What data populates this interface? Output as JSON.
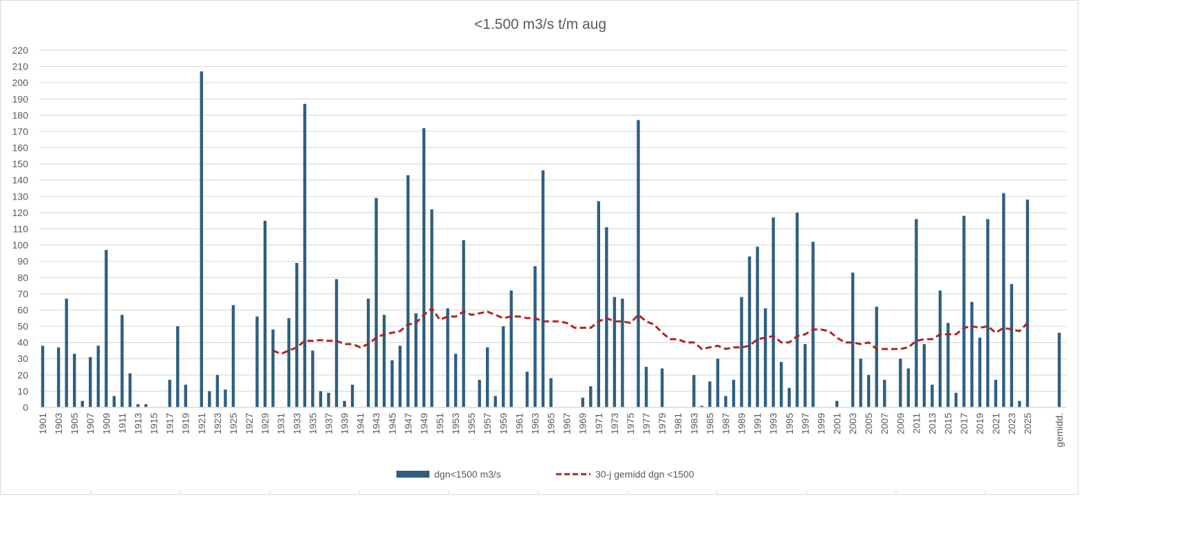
{
  "chart_data": {
    "type": "bar",
    "title": "<1.500 m3/s t/m aug",
    "xlabel": "",
    "ylabel": "",
    "ylim": [
      0,
      220
    ],
    "yticks": [
      0,
      10,
      20,
      30,
      40,
      50,
      60,
      70,
      80,
      90,
      100,
      110,
      120,
      130,
      140,
      150,
      160,
      170,
      180,
      190,
      200,
      210,
      220
    ],
    "grid": true,
    "legend_position": "bottom",
    "colors": {
      "bars": "#2e5f80",
      "line": "#b22222",
      "grid": "#d9d9d9",
      "text": "#595959"
    },
    "categories": [
      "1901",
      "1902",
      "1903",
      "1904",
      "1905",
      "1906",
      "1907",
      "1908",
      "1909",
      "1910",
      "1911",
      "1912",
      "1913",
      "1914",
      "1915",
      "1916",
      "1917",
      "1918",
      "1919",
      "1920",
      "1921",
      "1922",
      "1923",
      "1924",
      "1925",
      "1926",
      "1927",
      "1928",
      "1929",
      "1930",
      "1931",
      "1932",
      "1933",
      "1934",
      "1935",
      "1936",
      "1937",
      "1938",
      "1939",
      "1940",
      "1941",
      "1942",
      "1943",
      "1944",
      "1945",
      "1946",
      "1947",
      "1948",
      "1949",
      "1950",
      "1951",
      "1952",
      "1953",
      "1954",
      "1955",
      "1956",
      "1957",
      "1958",
      "1959",
      "1960",
      "1961",
      "1962",
      "1963",
      "1964",
      "1965",
      "1966",
      "1967",
      "1968",
      "1969",
      "1970",
      "1971",
      "1972",
      "1973",
      "1974",
      "1975",
      "1976",
      "1977",
      "1978",
      "1979",
      "1980",
      "1981",
      "1982",
      "1983",
      "1984",
      "1985",
      "1986",
      "1987",
      "1988",
      "1989",
      "1990",
      "1991",
      "1992",
      "1993",
      "1994",
      "1995",
      "1996",
      "1997",
      "1998",
      "1999",
      "2000",
      "2001",
      "2002",
      "2003",
      "2004",
      "2005",
      "2006",
      "2007",
      "2008",
      "2009",
      "2010",
      "2011",
      "2012",
      "2013",
      "2014",
      "2015",
      "2016",
      "2017",
      "2018",
      "2019",
      "2020",
      "2021",
      "2022",
      "2023",
      "2024",
      "2025",
      "gemidd."
    ],
    "series": [
      {
        "name": "dgn<1500 m3/s",
        "type": "bar",
        "values": [
          38,
          0,
          37,
          67,
          33,
          4,
          31,
          38,
          97,
          7,
          57,
          21,
          2,
          2,
          0,
          0,
          17,
          50,
          14,
          0,
          207,
          10,
          20,
          11,
          63,
          0,
          0,
          56,
          115,
          48,
          0,
          55,
          89,
          187,
          35,
          10,
          9,
          79,
          4,
          14,
          0,
          67,
          129,
          57,
          29,
          38,
          143,
          58,
          172,
          122,
          0,
          61,
          33,
          103,
          0,
          17,
          37,
          7,
          50,
          72,
          0,
          22,
          87,
          146,
          18,
          0,
          0,
          0,
          6,
          13,
          127,
          111,
          68,
          67,
          0,
          177,
          25,
          0,
          24,
          0,
          0,
          0,
          20,
          1,
          16,
          30,
          7,
          17,
          68,
          93,
          99,
          61,
          117,
          28,
          12,
          120,
          39,
          102,
          0,
          0,
          4,
          0,
          83,
          30,
          20,
          62,
          17,
          0,
          30,
          24,
          116,
          39,
          14,
          72,
          52,
          9,
          118,
          65,
          43,
          116,
          17,
          132,
          76,
          4,
          128,
          46
        ]
      },
      {
        "name": "30-j gemidd dgn <1500",
        "type": "line",
        "style": "dashed",
        "values": [
          null,
          null,
          null,
          null,
          null,
          null,
          null,
          null,
          null,
          null,
          null,
          null,
          null,
          null,
          null,
          null,
          null,
          null,
          null,
          null,
          null,
          null,
          null,
          null,
          null,
          null,
          null,
          null,
          null,
          35,
          33,
          35,
          37,
          41,
          41,
          41.5,
          41,
          41,
          39,
          39,
          37,
          39,
          43,
          45,
          46,
          47,
          51,
          52,
          57,
          61,
          54,
          56,
          56,
          59,
          57,
          58,
          59,
          57,
          55,
          56,
          56,
          55,
          55,
          53,
          53,
          53,
          52,
          49,
          49,
          49,
          53,
          55,
          53,
          53,
          52,
          57,
          53,
          51,
          46,
          42,
          42,
          40,
          40,
          36,
          37,
          38,
          36,
          37,
          37,
          38,
          42,
          43,
          44,
          40,
          40,
          44,
          45,
          48,
          48,
          47,
          43,
          40,
          40,
          39,
          40,
          36,
          36,
          36,
          36,
          37,
          41,
          42,
          42,
          45,
          45,
          45,
          49,
          50,
          49,
          50,
          46,
          49,
          48,
          47,
          52,
          null
        ]
      }
    ]
  }
}
